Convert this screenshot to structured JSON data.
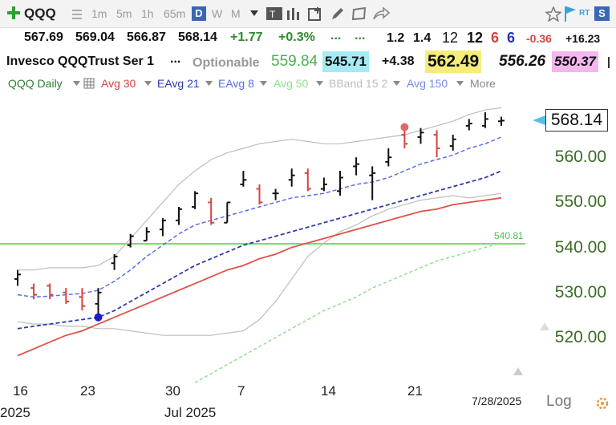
{
  "toolbar": {
    "symbol": "QQQ",
    "timeframes": [
      "1m",
      "5m",
      "1h",
      "65m"
    ],
    "active_period": "D",
    "periods": [
      "W",
      "M"
    ],
    "rt_label": "RT",
    "s_label": "S"
  },
  "quote": {
    "open": "567.69",
    "high": "569.04",
    "low": "566.87",
    "close": "568.14",
    "change": "+1.77",
    "change_pct": "+0.3%",
    "ellipsis": "...",
    "v1": "1.2",
    "v2": "1.4",
    "v3": "12",
    "v4": "12",
    "v5": "6",
    "v6": "6",
    "v7": "-0.36",
    "v8": "+16.23"
  },
  "info": {
    "name": "Invesco QQQTrust Ser 1",
    "ellipsis": "...",
    "optionable": "Optionable",
    "p1": "559.84",
    "p2": "545.71",
    "p3": "+4.38",
    "p4": "562.49",
    "p5": "556.26",
    "p6": "550.37"
  },
  "indicators": {
    "chart_name": "QQQ Daily",
    "avg30": "Avg 30",
    "eavg21": "EAvg 21",
    "eavg8": "EAvg 8",
    "avg50": "Avg 50",
    "bband": "BBand 15 2",
    "avg150": "Avg 150",
    "more": "More"
  },
  "chart_data": {
    "type": "ohlc",
    "y_ticks": [
      "570.00",
      "560.00",
      "550.00",
      "540.00",
      "530.00",
      "520.00"
    ],
    "ylim": [
      512,
      575
    ],
    "x_tick_labels": [
      "16",
      "23",
      "30",
      "7",
      "14",
      "21"
    ],
    "x_sub_labels": [
      "2025",
      "Jul 2025"
    ],
    "last_price": "568.14",
    "hline_value": 540.81,
    "hline_label": "540.81",
    "date_label": "7/28/2025",
    "log_label": "Log",
    "colors": {
      "up": "#111111",
      "down": "#d9433e",
      "avg30": "#e0524a",
      "eavg21": "#2d3da8",
      "eavg8": "#5a6ee8",
      "avg50": "#8ee08e",
      "bband": "#bdbdbd",
      "hline": "#6be26b"
    },
    "bars": [
      [
        533.0,
        535.0,
        531.5,
        534.0
      ],
      [
        531.0,
        532.0,
        528.5,
        529.5
      ],
      [
        531.5,
        532.0,
        528.5,
        529.5
      ],
      [
        530.0,
        531.0,
        527.5,
        528.0
      ],
      [
        529.0,
        531.0,
        526.0,
        527.0
      ],
      [
        527.5,
        531.0,
        524.0,
        530.0
      ],
      [
        536.5,
        538.5,
        535.0,
        538.0
      ],
      [
        540.5,
        543.0,
        540.0,
        542.5
      ],
      [
        541.5,
        544.5,
        541.5,
        543.5
      ],
      [
        544.0,
        546.5,
        542.5,
        546.0
      ],
      [
        546.0,
        549.0,
        545.0,
        548.5
      ],
      [
        549.0,
        552.5,
        548.5,
        552.0
      ],
      [
        550.0,
        551.0,
        545.0,
        545.5
      ],
      [
        545.5,
        550.0,
        545.5,
        550.0
      ],
      [
        554.0,
        557.0,
        553.5,
        555.0
      ],
      [
        553.0,
        554.0,
        549.5,
        550.0
      ],
      [
        552.0,
        553.0,
        550.5,
        552.0
      ],
      [
        555.0,
        557.5,
        553.5,
        556.0
      ],
      [
        556.5,
        557.5,
        552.5,
        553.0
      ],
      [
        553.0,
        555.5,
        552.5,
        554.0
      ],
      [
        552.5,
        557.0,
        551.5,
        555.5
      ],
      [
        558.0,
        560.0,
        556.0,
        558.5
      ],
      [
        556.0,
        558.0,
        550.5,
        556.5
      ],
      [
        559.0,
        562.0,
        558.0,
        560.0
      ],
      [
        565.0,
        566.0,
        562.0,
        563.0
      ],
      [
        564.5,
        566.5,
        563.0,
        565.5
      ],
      [
        565.0,
        566.0,
        560.0,
        562.0
      ],
      [
        562.5,
        565.0,
        561.5,
        564.0
      ],
      [
        567.0,
        568.5,
        566.0,
        567.5
      ],
      [
        567.0,
        570.0,
        566.5,
        568.5
      ],
      [
        568.0,
        569.0,
        567.0,
        568.14
      ]
    ],
    "eavg8": [
      529.5,
      529.0,
      529.2,
      529.5,
      529.8,
      530.5,
      532.5,
      535.0,
      538.0,
      540.5,
      543.0,
      545.0,
      546.0,
      547.0,
      548.0,
      549.0,
      550.0,
      551.0,
      551.5,
      552.0,
      553.0,
      554.0,
      554.5,
      555.5,
      557.0,
      558.5,
      559.5,
      560.5,
      562.0,
      563.0,
      564.5
    ],
    "eavg21": [
      522.0,
      522.5,
      523.0,
      523.5,
      524.0,
      524.5,
      526.0,
      528.0,
      530.0,
      532.0,
      534.0,
      536.0,
      537.5,
      539.0,
      540.5,
      541.5,
      542.5,
      543.5,
      544.5,
      545.5,
      546.5,
      547.5,
      548.5,
      549.5,
      550.5,
      551.5,
      552.5,
      553.5,
      554.5,
      555.5,
      557.0
    ],
    "avg30": [
      516.0,
      517.5,
      519.0,
      520.5,
      521.5,
      523.0,
      524.5,
      526.0,
      527.5,
      529.0,
      530.5,
      532.0,
      533.5,
      535.0,
      536.0,
      537.5,
      538.5,
      540.0,
      541.0,
      542.0,
      543.0,
      544.0,
      545.0,
      546.0,
      547.0,
      548.0,
      548.5,
      549.5,
      550.0,
      550.5,
      551.0
    ],
    "avg50": [
      null,
      null,
      null,
      null,
      null,
      null,
      null,
      null,
      null,
      null,
      null,
      510.0,
      512.0,
      514.0,
      516.0,
      518.0,
      520.0,
      522.0,
      524.0,
      526.0,
      527.5,
      529.0,
      531.0,
      532.5,
      534.0,
      535.5,
      537.0,
      538.0,
      539.0,
      540.0,
      541.0
    ],
    "bband_upper": [
      535.0,
      535.0,
      535.5,
      535.5,
      535.5,
      536.0,
      538.0,
      542.0,
      546.0,
      550.0,
      554.0,
      557.0,
      559.5,
      561.0,
      562.0,
      563.0,
      563.5,
      564.0,
      563.5,
      563.0,
      563.0,
      563.5,
      564.0,
      564.5,
      565.0,
      566.0,
      567.0,
      568.0,
      569.5,
      570.5,
      571.0
    ],
    "bband_lower": [
      523.5,
      523.0,
      523.0,
      522.5,
      522.5,
      522.0,
      522.0,
      521.5,
      521.0,
      520.5,
      520.5,
      520.5,
      520.5,
      521.0,
      521.5,
      524.0,
      528.0,
      533.0,
      538.0,
      541.0,
      543.5,
      545.0,
      547.0,
      548.5,
      549.5,
      550.5,
      551.0,
      551.5,
      551.0,
      551.5,
      552.0
    ]
  }
}
